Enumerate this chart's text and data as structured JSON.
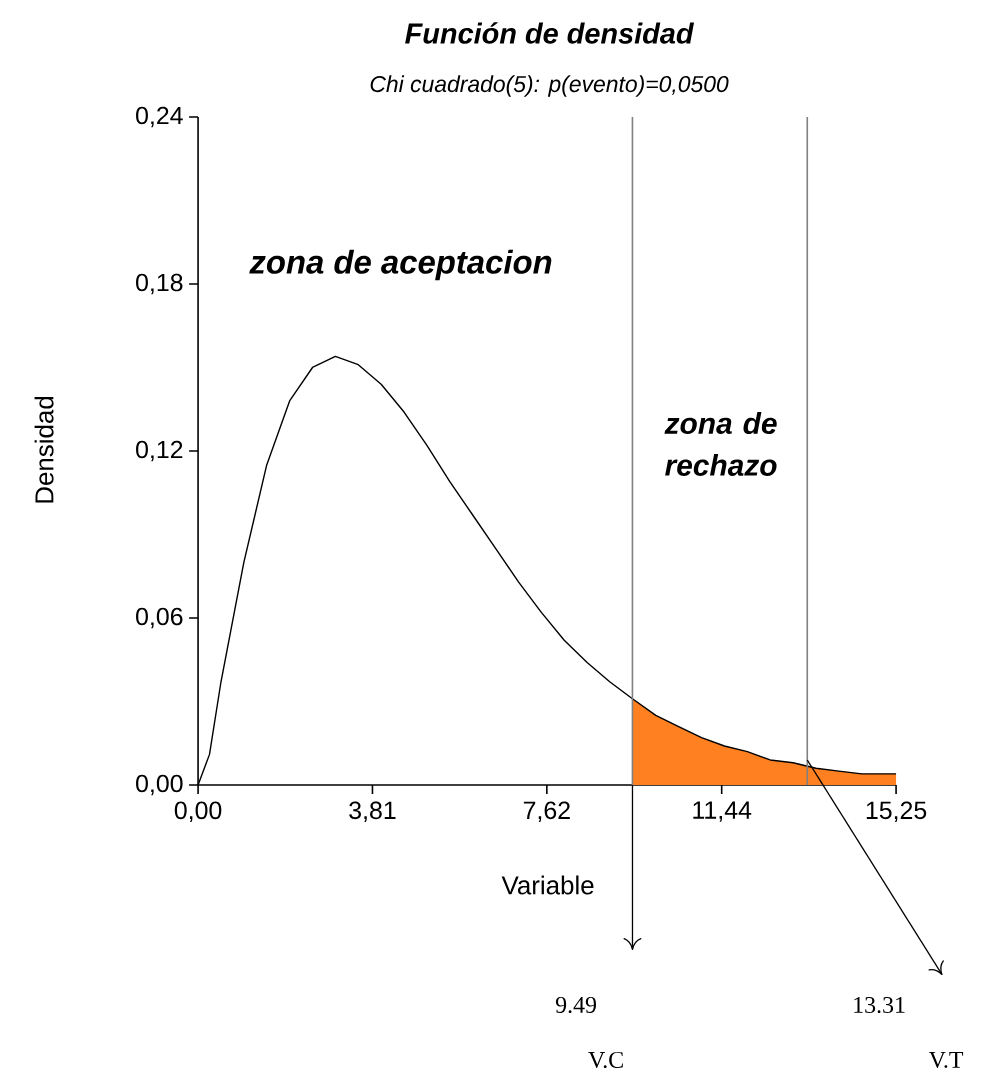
{
  "chart_data": {
    "type": "line",
    "title": "Función de densidad",
    "subtitle": "Chi cuadrado(5): p(evento)=0,0500",
    "xlabel": "Variable",
    "ylabel": "Densidad",
    "annotations": [
      "zona de aceptacion",
      "zona de rechazo",
      "9.49",
      "13.31",
      "V.C",
      "V.T"
    ],
    "series": [
      {
        "type": "area",
        "color": "#ff8020",
        "x": [
          9.49,
          10,
          10.5,
          11,
          11.5,
          12,
          12.5,
          13,
          13.5,
          14,
          14.5,
          15,
          15.25
        ],
        "values": [
          0.031,
          0.025,
          0.021,
          0.017,
          0.014,
          0.012,
          0.009,
          0.008,
          0.006,
          0.005,
          0.004,
          0.004,
          0.004
        ]
      },
      {
        "color": "#000000",
        "x": [
          0,
          0.25,
          0.5,
          1,
          1.5,
          2,
          2.5,
          3,
          3.5,
          4,
          4.5,
          5,
          5.5,
          6,
          6.5,
          7,
          7.5,
          8,
          8.5,
          9,
          9.49,
          10,
          10.5,
          11,
          11.5,
          12,
          12.5,
          13,
          13.5,
          14,
          14.5,
          15,
          15.25
        ],
        "values": [
          0,
          0.011,
          0.037,
          0.08,
          0.115,
          0.138,
          0.15,
          0.154,
          0.151,
          0.144,
          0.134,
          0.122,
          0.109,
          0.097,
          0.085,
          0.073,
          0.062,
          0.052,
          0.044,
          0.037,
          0.031,
          0.025,
          0.021,
          0.017,
          0.014,
          0.012,
          0.009,
          0.008,
          0.006,
          0.005,
          0.004,
          0.004,
          0.004
        ]
      }
    ],
    "xlim": [
      0,
      15.25
    ],
    "ylim": [
      0,
      0.24
    ],
    "xticks": [
      {
        "value": 0,
        "label": "0,00"
      },
      {
        "value": 3.81,
        "label": "3,81"
      },
      {
        "value": 7.62,
        "label": "7,62"
      },
      {
        "value": 11.44,
        "label": "11,44"
      },
      {
        "value": 15.25,
        "label": "15,25"
      }
    ],
    "yticks": [
      {
        "value": 0,
        "label": "0,00"
      },
      {
        "value": 0.06,
        "label": "0,06"
      },
      {
        "value": 0.12,
        "label": "0,12"
      },
      {
        "value": 0.18,
        "label": "0,18"
      },
      {
        "value": 0.24,
        "label": "0,24"
      }
    ],
    "ref_lines": [
      {
        "axis": "x",
        "value": 9.49,
        "color": "#808080"
      },
      {
        "axis": "x",
        "value": 13.31,
        "color": "#808080"
      }
    ]
  }
}
